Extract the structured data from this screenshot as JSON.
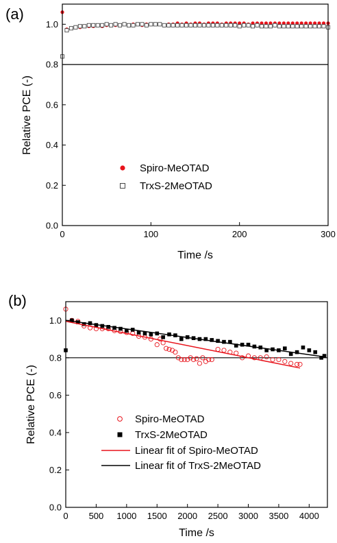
{
  "chart_data": [
    {
      "panel_label": "(a)",
      "type": "scatter",
      "xlabel": "Time /s",
      "ylabel": "Relative PCE (-)",
      "xlim": [
        0,
        300
      ],
      "ylim": [
        0,
        1.1
      ],
      "xticks": [
        0,
        100,
        200,
        300
      ],
      "yticks": [
        0.0,
        0.2,
        0.4,
        0.6,
        0.8,
        1.0
      ],
      "ytick_labels": [
        "0.0",
        "0.2",
        "0.4",
        "0.6",
        "0.8",
        "1.0"
      ],
      "reference_line_y": 0.8,
      "legend_position": "center",
      "series": [
        {
          "name": "Spiro-MeOTAD",
          "marker": "filled-circle",
          "color": "#e8131b",
          "x": [
            0,
            5,
            10,
            15,
            20,
            25,
            30,
            35,
            40,
            45,
            50,
            55,
            60,
            65,
            70,
            75,
            80,
            85,
            90,
            95,
            100,
            105,
            110,
            115,
            120,
            125,
            130,
            135,
            140,
            145,
            150,
            155,
            160,
            165,
            170,
            175,
            180,
            185,
            190,
            195,
            200,
            205,
            210,
            215,
            220,
            225,
            230,
            235,
            240,
            245,
            250,
            255,
            260,
            265,
            270,
            275,
            280,
            285,
            290,
            295,
            300
          ],
          "y": [
            1.06,
            0.975,
            0.98,
            0.985,
            0.985,
            0.99,
            0.99,
            0.99,
            0.995,
            0.99,
            0.995,
            0.995,
            0.995,
            0.995,
            1.0,
            0.995,
            1.0,
            1.0,
            0.995,
            1.0,
            1.0,
            1.0,
            1.0,
            0.995,
            1.0,
            1.0,
            1.005,
            1.0,
            1.005,
            1.0,
            1.005,
            1.005,
            1.0,
            1.005,
            1.005,
            1.005,
            1.0,
            1.005,
            1.005,
            1.005,
            1.005,
            1.005,
            1.0,
            1.005,
            1.005,
            1.005,
            1.005,
            1.005,
            1.005,
            1.005,
            1.005,
            1.005,
            1.005,
            1.005,
            1.005,
            1.005,
            1.005,
            1.005,
            1.005,
            1.005,
            1.005
          ]
        },
        {
          "name": "TrxS-2MeOTAD",
          "marker": "open-square",
          "color": "#333333",
          "x": [
            0,
            5,
            10,
            15,
            20,
            25,
            30,
            35,
            40,
            45,
            50,
            55,
            60,
            65,
            70,
            75,
            80,
            85,
            90,
            95,
            100,
            105,
            110,
            115,
            120,
            125,
            130,
            135,
            140,
            145,
            150,
            155,
            160,
            165,
            170,
            175,
            180,
            185,
            190,
            195,
            200,
            205,
            210,
            215,
            220,
            225,
            230,
            235,
            240,
            245,
            250,
            255,
            260,
            265,
            270,
            275,
            280,
            285,
            290,
            295,
            300
          ],
          "y": [
            0.84,
            0.97,
            0.98,
            0.985,
            0.99,
            0.99,
            0.995,
            0.995,
            0.995,
            0.995,
            1.0,
            0.995,
            1.0,
            0.995,
            1.0,
            0.995,
            0.995,
            1.0,
            1.0,
            0.995,
            1.0,
            1.0,
            1.0,
            0.995,
            0.995,
            0.995,
            0.995,
            0.995,
            0.995,
            0.995,
            0.995,
            0.995,
            0.995,
            0.995,
            0.995,
            0.995,
            0.995,
            0.995,
            0.995,
            0.995,
            0.99,
            0.995,
            0.995,
            0.99,
            0.995,
            0.99,
            0.99,
            0.99,
            0.995,
            0.99,
            0.99,
            0.99,
            0.99,
            0.99,
            0.99,
            0.99,
            0.99,
            0.99,
            0.99,
            0.99,
            0.985
          ]
        }
      ]
    },
    {
      "panel_label": "(b)",
      "type": "scatter",
      "xlabel": "Time /s",
      "ylabel": "Relative PCE (-)",
      "xlim": [
        0,
        4300
      ],
      "ylim": [
        0,
        1.1
      ],
      "xticks": [
        0,
        500,
        1000,
        1500,
        2000,
        2500,
        3000,
        3500,
        4000
      ],
      "yticks": [
        0.0,
        0.2,
        0.4,
        0.6,
        0.8,
        1.0
      ],
      "ytick_labels": [
        "0.0",
        "0.2",
        "0.4",
        "0.6",
        "0.8",
        "1.0"
      ],
      "reference_line_y": 0.8,
      "legend_position": "lower-center",
      "series": [
        {
          "name": "Spiro-MeOTAD",
          "marker": "open-circle",
          "color": "#e8131b",
          "x": [
            0,
            100,
            200,
            300,
            400,
            500,
            600,
            700,
            800,
            900,
            1000,
            1100,
            1200,
            1300,
            1400,
            1500,
            1550,
            1600,
            1650,
            1700,
            1750,
            1800,
            1850,
            1900,
            1950,
            2000,
            2050,
            2100,
            2150,
            2200,
            2250,
            2300,
            2350,
            2400,
            2500,
            2600,
            2700,
            2800,
            2900,
            3000,
            3100,
            3200,
            3300,
            3400,
            3500,
            3600,
            3700,
            3800,
            3850
          ],
          "y": [
            1.06,
            1.0,
            0.995,
            0.97,
            0.96,
            0.955,
            0.955,
            0.955,
            0.945,
            0.94,
            0.935,
            0.93,
            0.915,
            0.91,
            0.9,
            0.87,
            0.9,
            0.88,
            0.85,
            0.845,
            0.84,
            0.83,
            0.8,
            0.79,
            0.79,
            0.79,
            0.8,
            0.79,
            0.795,
            0.77,
            0.8,
            0.78,
            0.79,
            0.79,
            0.845,
            0.84,
            0.83,
            0.825,
            0.8,
            0.81,
            0.8,
            0.8,
            0.805,
            0.79,
            0.79,
            0.78,
            0.77,
            0.765,
            0.765
          ]
        },
        {
          "name": "TrxS-2MeOTAD",
          "marker": "filled-square",
          "color": "#000000",
          "x": [
            0,
            100,
            200,
            300,
            400,
            500,
            600,
            700,
            800,
            900,
            1000,
            1100,
            1200,
            1300,
            1400,
            1500,
            1600,
            1700,
            1800,
            1900,
            2000,
            2100,
            2200,
            2300,
            2400,
            2500,
            2600,
            2700,
            2800,
            2900,
            3000,
            3100,
            3200,
            3300,
            3400,
            3500,
            3600,
            3700,
            3800,
            3900,
            4000,
            4100,
            4200,
            4250
          ],
          "y": [
            0.84,
            1.0,
            0.99,
            0.98,
            0.985,
            0.975,
            0.97,
            0.965,
            0.96,
            0.955,
            0.945,
            0.95,
            0.935,
            0.93,
            0.925,
            0.93,
            0.91,
            0.925,
            0.92,
            0.9,
            0.91,
            0.905,
            0.9,
            0.9,
            0.895,
            0.89,
            0.885,
            0.885,
            0.865,
            0.87,
            0.87,
            0.86,
            0.855,
            0.84,
            0.845,
            0.84,
            0.85,
            0.82,
            0.83,
            0.855,
            0.84,
            0.83,
            0.8,
            0.81
          ]
        },
        {
          "name": "Linear fit of Spiro-MeOTAD",
          "style": "line",
          "color": "#e8131b",
          "x": [
            0,
            3850
          ],
          "y": [
            0.995,
            0.745
          ]
        },
        {
          "name": "Linear fit of TrxS-2MeOTAD",
          "style": "line",
          "color": "#000000",
          "x": [
            0,
            4250
          ],
          "y": [
            1.0,
            0.805
          ]
        }
      ]
    }
  ]
}
